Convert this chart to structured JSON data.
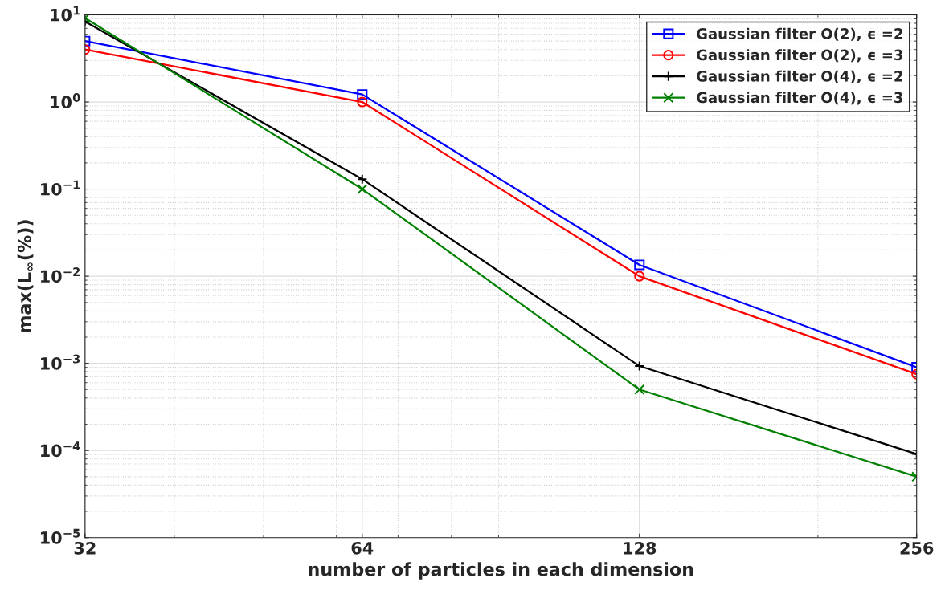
{
  "chart_data": {
    "type": "line",
    "xlabel": "number of particles in each dimension",
    "ylabel": "max(L$_{∞}$(%))",
    "x": [
      32,
      64,
      128,
      256
    ],
    "series": [
      {
        "name": "Gaussian filter O(2), ϵ =2",
        "color": "#0000ff",
        "marker": "square",
        "values": [
          5.0,
          1.22,
          0.0135,
          0.0009
        ]
      },
      {
        "name": "Gaussian filter O(2), ϵ =3",
        "color": "#ff0000",
        "marker": "circle",
        "values": [
          4.0,
          1.0,
          0.01,
          0.00075
        ]
      },
      {
        "name": "Gaussian filter O(4), ϵ =2",
        "color": "#000000",
        "marker": "plus",
        "values": [
          8.4,
          0.13,
          0.00093,
          9.1e-05
        ]
      },
      {
        "name": "Gaussian filter O(4), ϵ =3",
        "color": "#008000",
        "marker": "cross",
        "values": [
          9.2,
          0.1,
          0.0005,
          5e-05
        ]
      }
    ],
    "log": "xy",
    "xlim": [
      32,
      256
    ],
    "xticks": [
      32,
      64,
      128,
      256
    ],
    "ylim": [
      1e-05,
      10
    ],
    "yticks": [
      {
        "value": 1e-05,
        "label": "10$^{−5}$"
      },
      {
        "value": 0.0001,
        "label": "10$^{−4}$"
      },
      {
        "value": 0.001,
        "label": "10$^{−3}$"
      },
      {
        "value": 0.01,
        "label": "10$^{−2}$"
      },
      {
        "value": 0.1,
        "label": "10$^{−1}$"
      },
      {
        "value": 1,
        "label": "10$^{0}$"
      },
      {
        "value": 10,
        "label": "10$^{1}$"
      }
    ],
    "grid": true,
    "legend": "top right",
    "line_style": "solid"
  }
}
